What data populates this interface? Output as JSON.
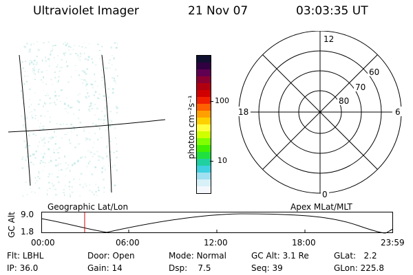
{
  "header": {
    "title": "Ultraviolet Imager",
    "date": "21 Nov 07",
    "time": "03:03:35 UT"
  },
  "colorbar": {
    "label": "photon cm⁻²s⁻¹",
    "ticks": [
      "100",
      "10"
    ],
    "colors": [
      "#101030",
      "#300040",
      "#600050",
      "#8a0030",
      "#b00010",
      "#d00000",
      "#f02000",
      "#ff6000",
      "#ffa000",
      "#ffd000",
      "#ffff40",
      "#d0ff00",
      "#80ff00",
      "#40f000",
      "#20e040",
      "#20d0a0",
      "#40d0e0",
      "#a0e0f0",
      "#d8f0f8",
      "#f4f8fc"
    ]
  },
  "polar": {
    "mlt_labels": {
      "top": "12",
      "left": "18",
      "right": "6",
      "bottom": "0"
    },
    "lat_labels": [
      "60",
      "70",
      "80"
    ]
  },
  "timeline": {
    "ylabel": "GC Alt",
    "yticks": [
      "9.0",
      "1.8"
    ],
    "left_title": "Geographic Lat/Lon",
    "right_title": "Apex MLat/MLT",
    "xticks": [
      "00:00",
      "06:00",
      "12:00",
      "18:00",
      "23:59"
    ]
  },
  "info": {
    "row1": [
      {
        "label": "Flt:",
        "value": "LBHL"
      },
      {
        "label": "Door:",
        "value": "Open"
      },
      {
        "label": "Mode:",
        "value": "Normal"
      },
      {
        "label": "GC Alt:",
        "value": "3.1 Re"
      },
      {
        "label": "GLat:",
        "value": "2.2"
      }
    ],
    "row2": [
      {
        "label": "IP:",
        "value": "36.0"
      },
      {
        "label": "Gain:",
        "value": "14"
      },
      {
        "label": "Dsp:",
        "value": "7.5"
      },
      {
        "label": "Seq:",
        "value": "39"
      },
      {
        "label": "GLon:",
        "value": "225.8"
      }
    ]
  }
}
